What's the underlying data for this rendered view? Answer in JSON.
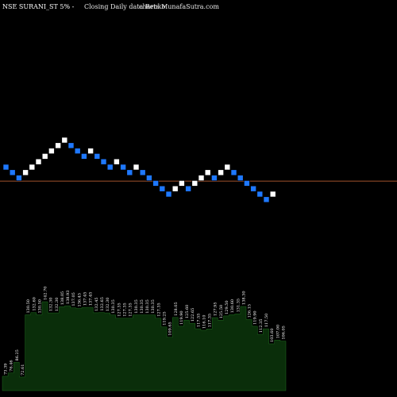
{
  "header": {
    "title": "NSE SURANI_ST 5% - Closing Daily data  Renko  charts MunafaSutra.com",
    "title_main": "NSE SURANI_ST 5% -",
    "title_sub": "Closing Daily data  Renko",
    "title_site": "charts MunafaSutra.com"
  },
  "colors": {
    "background": "#000000",
    "up_brick": "#ffffff",
    "down_brick": "#1e78ff",
    "reference_line": "#a0522d",
    "volume_fill": "#0a2e0a",
    "volume_stroke": "#1f6b1f"
  },
  "chart_data": {
    "type": "renko",
    "bricks": [
      {
        "level": 0,
        "dir": "down"
      },
      {
        "level": -1,
        "dir": "down"
      },
      {
        "level": -2,
        "dir": "down"
      },
      {
        "level": -1,
        "dir": "up"
      },
      {
        "level": 0,
        "dir": "up"
      },
      {
        "level": 1,
        "dir": "up"
      },
      {
        "level": 2,
        "dir": "up"
      },
      {
        "level": 3,
        "dir": "up"
      },
      {
        "level": 4,
        "dir": "up"
      },
      {
        "level": 5,
        "dir": "up"
      },
      {
        "level": 4,
        "dir": "down"
      },
      {
        "level": 3,
        "dir": "down"
      },
      {
        "level": 2,
        "dir": "down"
      },
      {
        "level": 3,
        "dir": "up"
      },
      {
        "level": 2,
        "dir": "down"
      },
      {
        "level": 1,
        "dir": "down"
      },
      {
        "level": 0,
        "dir": "down"
      },
      {
        "level": 1,
        "dir": "up"
      },
      {
        "level": 0,
        "dir": "down"
      },
      {
        "level": -1,
        "dir": "down"
      },
      {
        "level": 0,
        "dir": "up"
      },
      {
        "level": -1,
        "dir": "down"
      },
      {
        "level": -2,
        "dir": "down"
      },
      {
        "level": -3,
        "dir": "down"
      },
      {
        "level": -4,
        "dir": "down"
      },
      {
        "level": -5,
        "dir": "down"
      },
      {
        "level": -4,
        "dir": "up"
      },
      {
        "level": -3,
        "dir": "up"
      },
      {
        "level": -4,
        "dir": "down"
      },
      {
        "level": -3,
        "dir": "up"
      },
      {
        "level": -2,
        "dir": "up"
      },
      {
        "level": -1,
        "dir": "up"
      },
      {
        "level": -2,
        "dir": "down"
      },
      {
        "level": -1,
        "dir": "up"
      },
      {
        "level": 0,
        "dir": "up"
      },
      {
        "level": -1,
        "dir": "down"
      },
      {
        "level": -2,
        "dir": "down"
      },
      {
        "level": -3,
        "dir": "down"
      },
      {
        "level": -4,
        "dir": "down"
      },
      {
        "level": -5,
        "dir": "down"
      },
      {
        "level": -6,
        "dir": "down"
      },
      {
        "level": -5,
        "dir": "up"
      }
    ],
    "reference_level": -2.6,
    "volume_labels": [
      "73.39",
      "76.46",
      "86.25",
      "72.61",
      "130.50",
      "132.60",
      "130.50",
      "142.70",
      "132.30",
      "132.30",
      "138.05",
      "138.93",
      "137.05",
      "136.45",
      "137.45",
      "137.45",
      "132.45",
      "132.65",
      "132.30",
      "130.35",
      "127.35",
      "127.35",
      "127.35",
      "130.35",
      "130.35",
      "130.35",
      "130.35",
      "127.35",
      "119.25",
      "109.65",
      "128.05",
      "119.90",
      "125.60",
      "122.65",
      "117.55",
      "116.10",
      "117.35",
      "127.95",
      "125.50",
      "129.50",
      "130.60",
      "131.35",
      "138.30",
      "126.15",
      "119.90",
      "112.35",
      "117.50",
      "103.60",
      "107.00",
      "106.05"
    ]
  }
}
